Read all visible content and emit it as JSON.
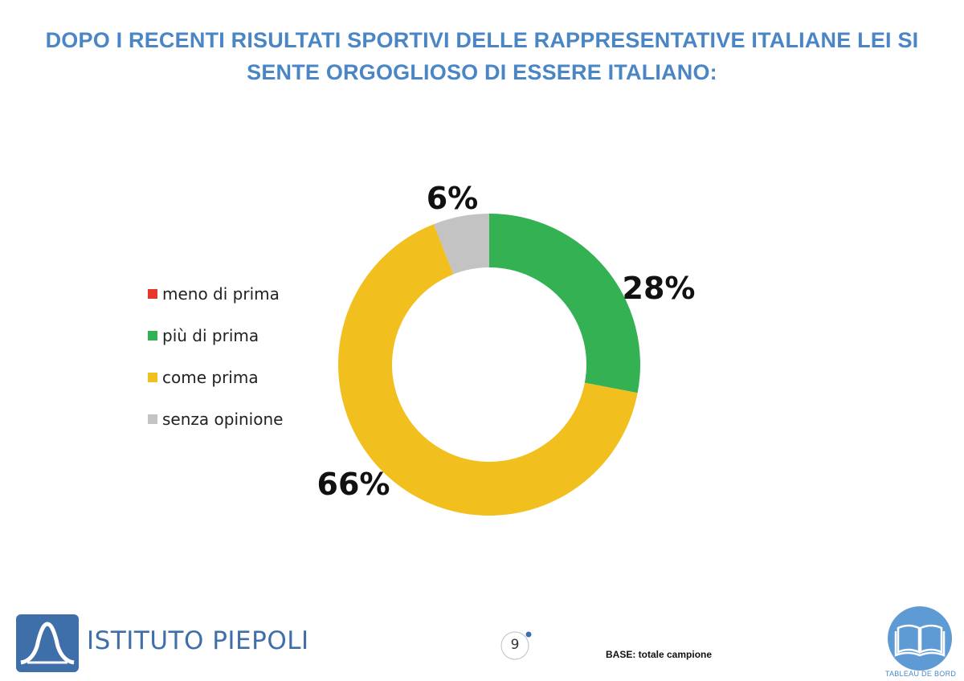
{
  "title": "DOPO I RECENTI RISULTATI SPORTIVI DELLE RAPPRESENTATIVE ITALIANE LEI SI SENTE ORGOGLIOSO DI ESSERE ITALIANO:",
  "legend_placement": "left",
  "chart_data": {
    "type": "pie",
    "donut": true,
    "title": "DOPO I RECENTI RISULTATI SPORTIVI DELLE RAPPRESENTATIVE ITALIANE LEI SI SENTE ORGOGLIOSO DI ESSERE ITALIANO:",
    "categories": [
      "meno di prima",
      "più di prima",
      "come prima",
      "senza opinione"
    ],
    "values": [
      0,
      28,
      66,
      6
    ],
    "labels": [
      "",
      "28%",
      "66%",
      "6%"
    ],
    "colors": [
      "#e8352b",
      "#33b153",
      "#f1bf1e",
      "#c3c3c3"
    ],
    "legend": "left"
  },
  "footer": {
    "brand": "ISTITUTO PIEPOLI",
    "page_number": "9",
    "base_note": "BASE: totale campione",
    "tableau_label": "TABLEAU DE BORD"
  },
  "icons": {
    "logo": "piepoli-logo-icon",
    "tableau": "open-book-icon"
  }
}
